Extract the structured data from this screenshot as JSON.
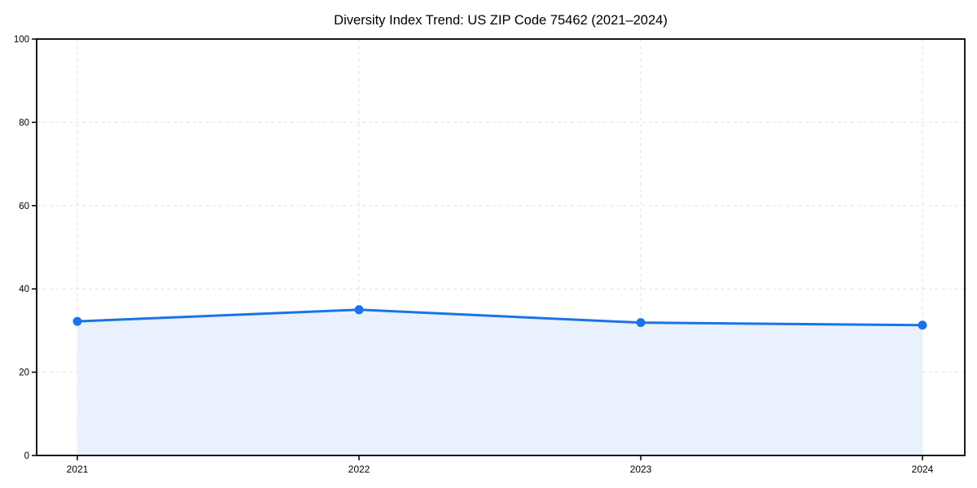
{
  "chart_data": {
    "type": "area",
    "title": "Diversity Index Trend: US ZIP Code 75462 (2021–2024)",
    "x": [
      "2021",
      "2022",
      "2023",
      "2024"
    ],
    "series": [
      {
        "name": "Diversity Index",
        "values": [
          32.2,
          35.0,
          31.9,
          31.3
        ]
      }
    ],
    "xlabel": "",
    "ylabel": "",
    "ylim": [
      0,
      100
    ],
    "yticks": [
      0,
      20,
      40,
      60,
      80,
      100
    ],
    "grid": "dashed gridlines on both axes at tick positions",
    "legend_position": "none",
    "frame": "full box (all four spines)",
    "colors": {
      "line": "#1a73e8",
      "marker": "#1a73e8",
      "area_fill": "#e8f1fd",
      "gridline": "#e2e2e2",
      "axis": "#000000",
      "text": "#000000",
      "background": "#ffffff"
    }
  }
}
